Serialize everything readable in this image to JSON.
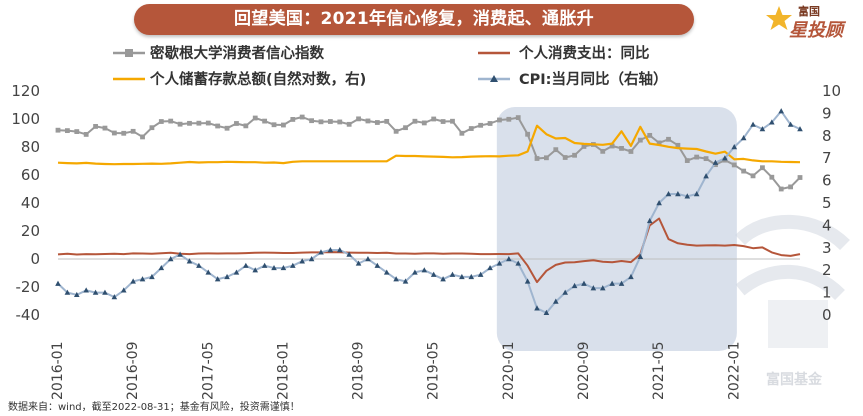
{
  "title": "回望美国：2021年信心修复，消费起、通胀升",
  "brand": {
    "name": "富国",
    "tagline": "星投顾",
    "watermark": "富国基金"
  },
  "footer": "数据来自：wind，截至2022-08-31；基金有风险，投资需谨慎！",
  "chart_data": {
    "type": "line",
    "x": [
      "2016-01",
      "2016-02",
      "2016-03",
      "2016-04",
      "2016-05",
      "2016-06",
      "2016-07",
      "2016-08",
      "2016-09",
      "2016-10",
      "2016-11",
      "2016-12",
      "2017-01",
      "2017-02",
      "2017-03",
      "2017-04",
      "2017-05",
      "2017-06",
      "2017-07",
      "2017-08",
      "2017-09",
      "2017-10",
      "2017-11",
      "2017-12",
      "2018-01",
      "2018-02",
      "2018-03",
      "2018-04",
      "2018-05",
      "2018-06",
      "2018-07",
      "2018-08",
      "2018-09",
      "2018-10",
      "2018-11",
      "2018-12",
      "2019-01",
      "2019-02",
      "2019-03",
      "2019-04",
      "2019-05",
      "2019-06",
      "2019-07",
      "2019-08",
      "2019-09",
      "2019-10",
      "2019-11",
      "2019-12",
      "2020-01",
      "2020-02",
      "2020-03",
      "2020-04",
      "2020-05",
      "2020-06",
      "2020-07",
      "2020-08",
      "2020-09",
      "2020-10",
      "2020-11",
      "2020-12",
      "2021-01",
      "2021-02",
      "2021-03",
      "2021-04",
      "2021-05",
      "2021-06",
      "2021-07",
      "2021-08",
      "2021-09",
      "2021-10",
      "2021-11",
      "2021-12",
      "2022-01",
      "2022-02",
      "2022-03",
      "2022-04",
      "2022-05",
      "2022-06",
      "2022-07",
      "2022-08"
    ],
    "x_tick_labels": [
      "2016-01",
      "2016-09",
      "2017-05",
      "2018-01",
      "2018-09",
      "2019-05",
      "2020-01",
      "2020-09",
      "2021-05",
      "2022-01"
    ],
    "y_left": {
      "min": -40,
      "max": 120,
      "ticks": [
        -40,
        -20,
        0,
        20,
        40,
        60,
        80,
        100,
        120
      ]
    },
    "y_right": {
      "min": 0,
      "max": 10,
      "ticks": [
        0,
        1,
        2,
        3,
        4,
        5,
        6,
        7,
        8,
        9,
        10
      ]
    },
    "highlight_range": [
      "2020-01",
      "2021-12"
    ],
    "legend_position": "top",
    "series": [
      {
        "name": "密歇根大学消费者信心指数",
        "axis": "left",
        "color": "#999999",
        "marker": "square",
        "values": [
          92,
          91.7,
          91,
          89,
          94.7,
          93.5,
          90,
          89.8,
          91.2,
          87.2,
          93.8,
          98.2,
          98.5,
          96.3,
          96.9,
          97,
          97.1,
          95,
          93.4,
          96.8,
          95.1,
          100.7,
          98.5,
          95.9,
          95.7,
          99.7,
          101.4,
          98.8,
          98,
          98.2,
          97.9,
          96.2,
          100.1,
          98.6,
          97.5,
          98.3,
          91.2,
          93.8,
          98.4,
          97.2,
          100,
          98.2,
          98.4,
          89.8,
          93.2,
          95.5,
          96.8,
          99.3,
          99.8,
          101,
          89.1,
          71.8,
          72.3,
          78.1,
          72.5,
          74.1,
          80.4,
          81.8,
          76.9,
          80.7,
          79,
          76.8,
          84.9,
          88.3,
          82.9,
          85.5,
          81.2,
          70.3,
          72.8,
          71.7,
          67.4,
          70.6,
          67.2,
          62.8,
          59.4,
          65.2,
          58.4,
          50,
          51.5,
          58.2
        ]
      },
      {
        "name": "个人消费支出：同比",
        "axis": "left",
        "color": "#b5563a",
        "marker": "none",
        "values": [
          3.3,
          3.8,
          3.2,
          3.5,
          3.4,
          3.6,
          3.7,
          3.5,
          4,
          3.9,
          3.8,
          4.1,
          4.4,
          3.8,
          3.5,
          3.9,
          4,
          3.9,
          4,
          4,
          4.2,
          4.5,
          4.6,
          4.5,
          4.3,
          4.3,
          4.6,
          4.7,
          4.7,
          4.9,
          4.8,
          4.6,
          4.4,
          4.4,
          4.3,
          4.5,
          3.9,
          3.9,
          3.8,
          4,
          4,
          3.8,
          3.9,
          3.9,
          3.8,
          3.5,
          3.5,
          3.6,
          3.5,
          4,
          -4.8,
          -16.5,
          -8.4,
          -4.2,
          -2.5,
          -2.3,
          -1.5,
          -0.9,
          -1.9,
          -2.3,
          -1.4,
          -2.2,
          3.5,
          23.9,
          28.9,
          14.2,
          11.2,
          10.2,
          9.6,
          9.7,
          9.8,
          9.6,
          10,
          9.2,
          7.7,
          8.3,
          4.7,
          2.8,
          2.2,
          3.5
        ]
      },
      {
        "name": "个人储蓄存款总额(自然对数，右)",
        "axis": "right",
        "color": "#f5a800",
        "marker": "none",
        "values": [
          6.8,
          6.78,
          6.77,
          6.79,
          6.76,
          6.74,
          6.73,
          6.74,
          6.74,
          6.75,
          6.76,
          6.75,
          6.77,
          6.8,
          6.83,
          6.81,
          6.82,
          6.82,
          6.84,
          6.83,
          6.82,
          6.82,
          6.8,
          6.81,
          6.78,
          6.84,
          6.86,
          6.86,
          6.86,
          6.86,
          6.86,
          6.86,
          6.86,
          6.86,
          6.86,
          6.86,
          7.11,
          7.1,
          7.1,
          7.08,
          7.07,
          7.06,
          7.04,
          7.05,
          7.07,
          7.08,
          7.09,
          7.08,
          7.11,
          7.13,
          7.3,
          8.45,
          8.07,
          7.88,
          7.9,
          7.68,
          7.64,
          7.62,
          7.6,
          7.65,
          8.2,
          7.55,
          8.4,
          7.65,
          7.59,
          7.51,
          7.45,
          7.43,
          7.41,
          7.3,
          7.2,
          7.29,
          6.95,
          6.97,
          6.9,
          6.86,
          6.86,
          6.84,
          6.83,
          6.82
        ]
      },
      {
        "name": "CPI:当月同比（右轴）",
        "axis": "right",
        "color": "#9fb5cf",
        "marker": "triangle",
        "values": [
          1.4,
          1,
          0.9,
          1.1,
          1,
          1,
          0.8,
          1.1,
          1.5,
          1.6,
          1.7,
          2.1,
          2.5,
          2.7,
          2.4,
          2.2,
          1.9,
          1.6,
          1.7,
          1.9,
          2.2,
          2,
          2.2,
          2.1,
          2.1,
          2.2,
          2.4,
          2.5,
          2.8,
          2.9,
          2.9,
          2.7,
          2.3,
          2.5,
          2.2,
          1.9,
          1.6,
          1.5,
          1.9,
          2,
          1.8,
          1.6,
          1.8,
          1.7,
          1.7,
          1.8,
          2.1,
          2.3,
          2.5,
          2.3,
          1.5,
          0.3,
          0.1,
          0.6,
          1,
          1.3,
          1.4,
          1.2,
          1.2,
          1.4,
          1.4,
          1.7,
          2.6,
          4.2,
          5,
          5.4,
          5.4,
          5.3,
          5.4,
          6.2,
          6.8,
          7,
          7.5,
          7.9,
          8.5,
          8.3,
          8.6,
          9.1,
          8.5,
          8.3
        ]
      }
    ]
  }
}
